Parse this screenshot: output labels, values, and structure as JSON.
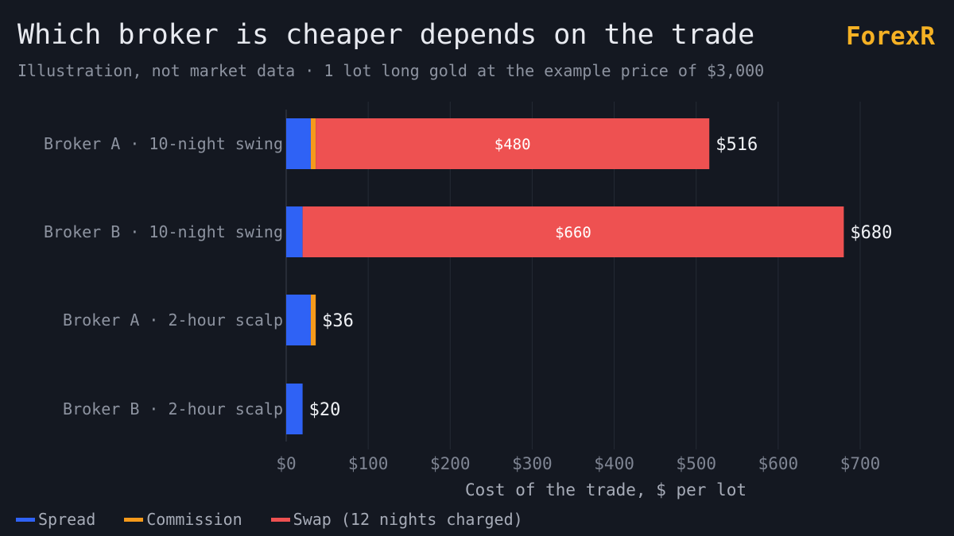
{
  "header": {
    "title": "Which broker is cheaper depends on the trade",
    "brand": "ForexR",
    "subtitle": "Illustration, not market data · 1 lot long gold at the example price of $3,000"
  },
  "colors": {
    "spread": "#2f62f5",
    "commission": "#f59a1b",
    "swap": "#ee5151",
    "background": "#141821",
    "grid": "#252a35"
  },
  "legend": [
    {
      "label": "Spread",
      "color": "#2f62f5"
    },
    {
      "label": "Commission",
      "color": "#f59a1b"
    },
    {
      "label": "Swap (12 nights charged)",
      "color": "#ee5151"
    }
  ],
  "chart_data": {
    "type": "bar",
    "orientation": "horizontal",
    "stacked": true,
    "categories": [
      "Broker A · 10-night swing",
      "Broker B · 10-night swing",
      "Broker A · 2-hour scalp",
      "Broker B · 2-hour scalp"
    ],
    "series": [
      {
        "name": "Spread",
        "values": [
          30,
          20,
          30,
          20
        ]
      },
      {
        "name": "Commission",
        "values": [
          6,
          0,
          6,
          0
        ]
      },
      {
        "name": "Swap (12 nights charged)",
        "values": [
          480,
          660,
          0,
          0
        ]
      }
    ],
    "segment_labels": [
      "$480",
      "$660",
      "",
      ""
    ],
    "total_labels": [
      "$516",
      "$680",
      "$36",
      "$20"
    ],
    "xlabel": "Cost of the trade, $ per lot",
    "xticks": [
      "$0",
      "$100",
      "$200",
      "$300",
      "$400",
      "$500",
      "$600",
      "$700"
    ],
    "xlim": [
      0,
      700
    ],
    "grid": true,
    "legend_position": "bottom-left"
  }
}
